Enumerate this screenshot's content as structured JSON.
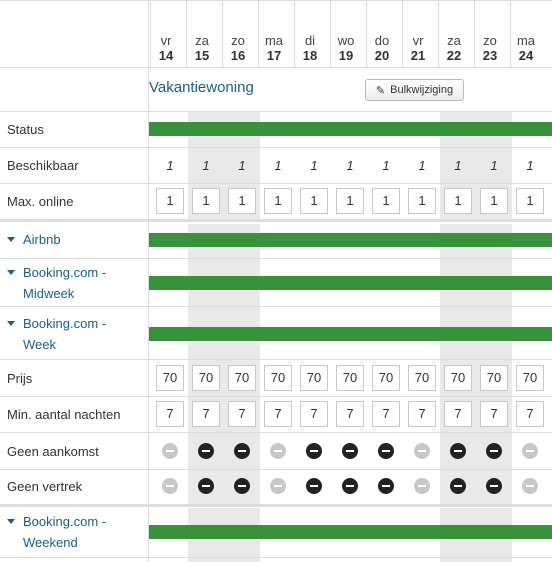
{
  "property_title": "Vakantiewoning",
  "bulk_button_label": "Bulkwijziging",
  "days": [
    {
      "dow": "vr",
      "num": "14",
      "weekend": false
    },
    {
      "dow": "za",
      "num": "15",
      "weekend": true
    },
    {
      "dow": "zo",
      "num": "16",
      "weekend": true
    },
    {
      "dow": "ma",
      "num": "17",
      "weekend": false
    },
    {
      "dow": "di",
      "num": "18",
      "weekend": false
    },
    {
      "dow": "wo",
      "num": "19",
      "weekend": false
    },
    {
      "dow": "do",
      "num": "20",
      "weekend": false
    },
    {
      "dow": "vr",
      "num": "21",
      "weekend": false
    },
    {
      "dow": "za",
      "num": "22",
      "weekend": true
    },
    {
      "dow": "zo",
      "num": "23",
      "weekend": true
    },
    {
      "dow": "ma",
      "num": "24",
      "weekend": false
    }
  ],
  "rows": {
    "status": "Status",
    "beschikbaar": "Beschikbaar",
    "max_online": "Max. online",
    "prijs": "Prijs",
    "min_nachten": "Min. aantal nachten",
    "geen_aankomst": "Geen aankomst",
    "geen_vertrek": "Geen vertrek"
  },
  "channels": [
    {
      "line1": "Airbnb",
      "line2": ""
    },
    {
      "line1": "Booking.com -",
      "line2": "Midweek"
    },
    {
      "line1": "Booking.com -",
      "line2": "Week"
    },
    {
      "line1": "Booking.com -",
      "line2": "Weekend"
    }
  ],
  "beschikbaar_values": [
    "1",
    "1",
    "1",
    "1",
    "1",
    "1",
    "1",
    "1",
    "1",
    "1",
    "1"
  ],
  "max_online_values": [
    "1",
    "1",
    "1",
    "1",
    "1",
    "1",
    "1",
    "1",
    "1",
    "1",
    "1"
  ],
  "prijs_values": [
    "70",
    "70",
    "70",
    "70",
    "70",
    "70",
    "70",
    "70",
    "70",
    "70",
    "70"
  ],
  "min_nachten_values": [
    "7",
    "7",
    "7",
    "7",
    "7",
    "7",
    "7",
    "7",
    "7",
    "7",
    "7"
  ],
  "geen_aankomst_active": [
    false,
    true,
    true,
    false,
    true,
    true,
    true,
    false,
    true,
    true,
    false
  ],
  "geen_vertrek_active": [
    false,
    true,
    true,
    false,
    true,
    true,
    true,
    false,
    true,
    true,
    false
  ],
  "colors": {
    "bar": "#37923b",
    "link": "#1a5e8c",
    "weekend": "#e9e9e9"
  }
}
